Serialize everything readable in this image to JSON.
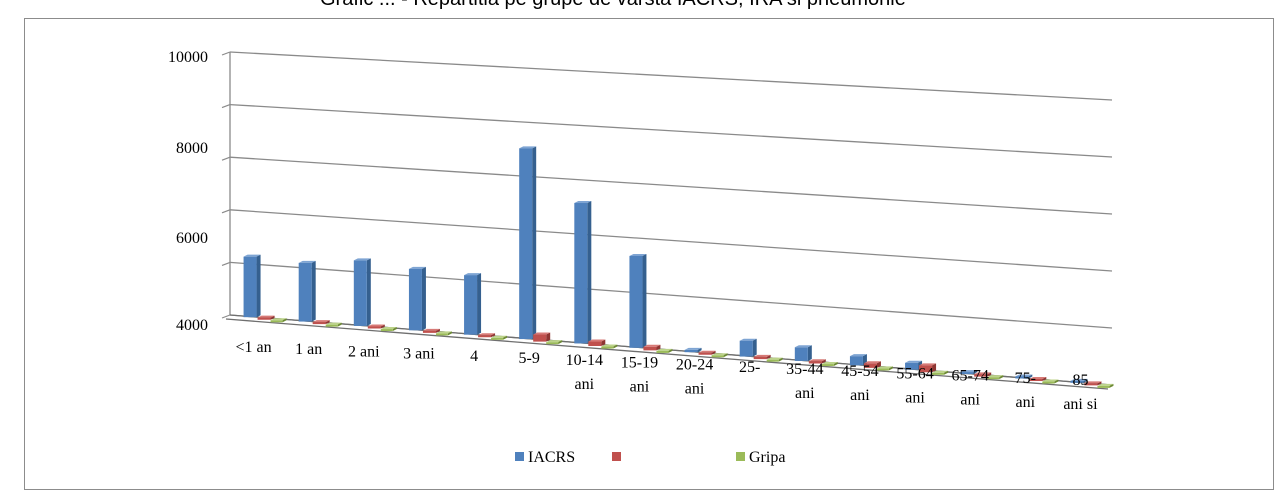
{
  "chart_data": {
    "type": "bar",
    "title": "",
    "xlabel": "",
    "ylabel": "",
    "y_ticks": [
      "4000",
      "6000",
      "8000",
      "10000"
    ],
    "categories": [
      "<1 an",
      "1 an",
      "2 ani",
      "3 ani",
      "4",
      "5-9",
      "10-14 ani",
      "15-19 ani",
      "20-24 ani",
      "25-",
      "35-44 ani",
      "45-54 ani",
      "55-64 ani",
      "65-74 ani",
      "75- ani",
      "85 ani si"
    ],
    "series": [
      {
        "name": "IACRS",
        "color": "#4f81bd",
        "values": [
          5300,
          5250,
          5400,
          5300,
          5250,
          8200,
          7050,
          5950,
          3950,
          4250,
          4200,
          4100,
          4050,
          3800,
          3350,
          3050
        ]
      },
      {
        "name": "",
        "color": "#c0504d",
        "values": [
          3950,
          3940,
          3940,
          3930,
          3920,
          4060,
          4000,
          3980,
          3920,
          3950,
          3950,
          4000,
          4050,
          3950,
          3880,
          3820
        ]
      },
      {
        "name": "Gripa",
        "color": "#9bbb59",
        "values": [
          3840,
          3840,
          3830,
          3830,
          3830,
          3830,
          3830,
          3830,
          3830,
          3830,
          3830,
          3830,
          3830,
          3830,
          3830,
          3830
        ]
      }
    ],
    "ylim": [
      3900,
      10000
    ],
    "grid": true,
    "legend": "bottom"
  },
  "title_fragment": "Grafic ... - Repartitia pe grupe de varsta IACRS, IRA si pneumonie"
}
